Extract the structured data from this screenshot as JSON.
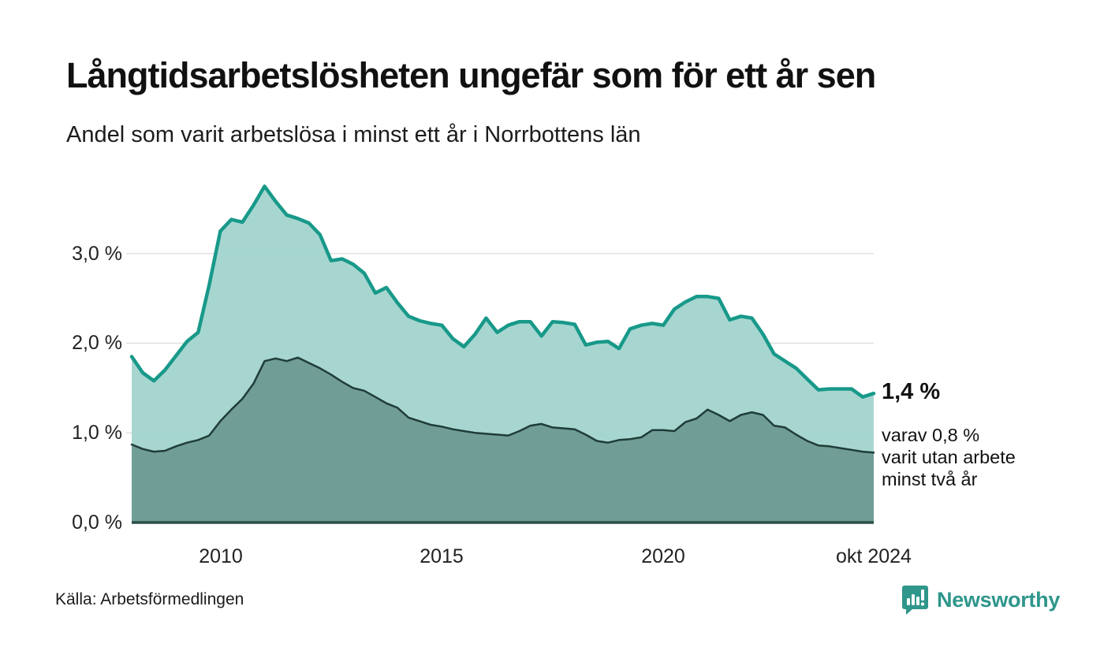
{
  "header": {
    "title": "Långtidsarbetslösheten ungefär som för ett år sen",
    "subtitle": "Andel som varit arbetslösa i minst ett år i Norrbottens län"
  },
  "chart_data": {
    "type": "area",
    "title": "Långtidsarbetslösheten ungefär som för ett år sen",
    "subtitle": "Andel som varit arbetslösa i minst ett år i Norrbottens län",
    "unit": "%",
    "x": [
      2008,
      2008.25,
      2008.5,
      2008.75,
      2009,
      2009.25,
      2009.5,
      2009.75,
      2010,
      2010.25,
      2010.5,
      2010.75,
      2011,
      2011.25,
      2011.5,
      2011.75,
      2012,
      2012.25,
      2012.5,
      2012.75,
      2013,
      2013.25,
      2013.5,
      2013.75,
      2014,
      2014.25,
      2014.5,
      2014.75,
      2015,
      2015.25,
      2015.5,
      2015.75,
      2016,
      2016.25,
      2016.5,
      2016.75,
      2017,
      2017.25,
      2017.5,
      2017.75,
      2018,
      2018.25,
      2018.5,
      2018.75,
      2019,
      2019.25,
      2019.5,
      2019.75,
      2020,
      2020.25,
      2020.5,
      2020.75,
      2021,
      2021.25,
      2021.5,
      2021.75,
      2022,
      2022.25,
      2022.5,
      2022.75,
      2023,
      2023.25,
      2023.5,
      2023.75,
      2024,
      2024.25,
      2024.5,
      2024.75
    ],
    "series": [
      {
        "name": "Andel arbetslösa minst ett år",
        "line_color": "#18998a",
        "fill_color": "#a4d5ce",
        "line_width": 4.5,
        "values": [
          1.85,
          1.67,
          1.58,
          1.7,
          1.86,
          2.02,
          2.12,
          2.65,
          3.25,
          3.38,
          3.35,
          3.54,
          3.75,
          3.58,
          3.43,
          3.39,
          3.34,
          3.21,
          2.92,
          2.94,
          2.88,
          2.78,
          2.56,
          2.62,
          2.45,
          2.3,
          2.25,
          2.22,
          2.2,
          2.05,
          1.96,
          2.1,
          2.28,
          2.12,
          2.2,
          2.24,
          2.24,
          2.08,
          2.24,
          2.23,
          2.21,
          1.98,
          2.01,
          2.02,
          1.94,
          2.16,
          2.2,
          2.22,
          2.2,
          2.38,
          2.46,
          2.52,
          2.52,
          2.5,
          2.26,
          2.3,
          2.28,
          2.1,
          1.88,
          1.8,
          1.72,
          1.6,
          1.48,
          1.49,
          1.49,
          1.49,
          1.4,
          1.44
        ]
      },
      {
        "name": "Andel arbetslösa minst två år",
        "line_color": "#1f3d38",
        "fill_color": "#6f9b95",
        "line_width": 2.5,
        "values": [
          0.87,
          0.82,
          0.79,
          0.8,
          0.85,
          0.89,
          0.92,
          0.97,
          1.13,
          1.26,
          1.38,
          1.55,
          1.8,
          1.83,
          1.8,
          1.84,
          1.78,
          1.72,
          1.65,
          1.57,
          1.5,
          1.47,
          1.4,
          1.33,
          1.28,
          1.17,
          1.13,
          1.09,
          1.07,
          1.04,
          1.02,
          1.0,
          0.99,
          0.98,
          0.97,
          1.02,
          1.08,
          1.1,
          1.06,
          1.05,
          1.04,
          0.98,
          0.91,
          0.89,
          0.92,
          0.93,
          0.95,
          1.03,
          1.03,
          1.02,
          1.12,
          1.16,
          1.26,
          1.2,
          1.13,
          1.2,
          1.23,
          1.2,
          1.08,
          1.06,
          0.98,
          0.91,
          0.86,
          0.85,
          0.83,
          0.81,
          0.79,
          0.78
        ]
      }
    ],
    "xlim": [
      2008,
      2024.75
    ],
    "ylim": [
      0,
      3.95
    ],
    "grid": "horizontal",
    "grid_color": "#e2e2e2",
    "baseline_color": "#2b4e48",
    "yticks": [
      {
        "value": 3,
        "label": "3,0 %"
      },
      {
        "value": 2,
        "label": "2,0 %"
      },
      {
        "value": 1,
        "label": "1,0 %"
      },
      {
        "value": 0,
        "label": "0,0 %"
      }
    ],
    "xticks": [
      {
        "value": 2010,
        "label": "2010"
      },
      {
        "value": 2015,
        "label": "2015"
      },
      {
        "value": 2020,
        "label": "2020"
      },
      {
        "value": 2024.75,
        "label": "okt 2024"
      }
    ],
    "annotations": {
      "last_value_main": "1,4 %",
      "secondary_lines": [
        "varav 0,8 %",
        "varit utan arbete",
        "minst två år"
      ]
    }
  },
  "footer": {
    "source": "Källa: Arbetsförmedlingen",
    "brand": "Newsworthy",
    "brand_color": "#2f968b"
  }
}
